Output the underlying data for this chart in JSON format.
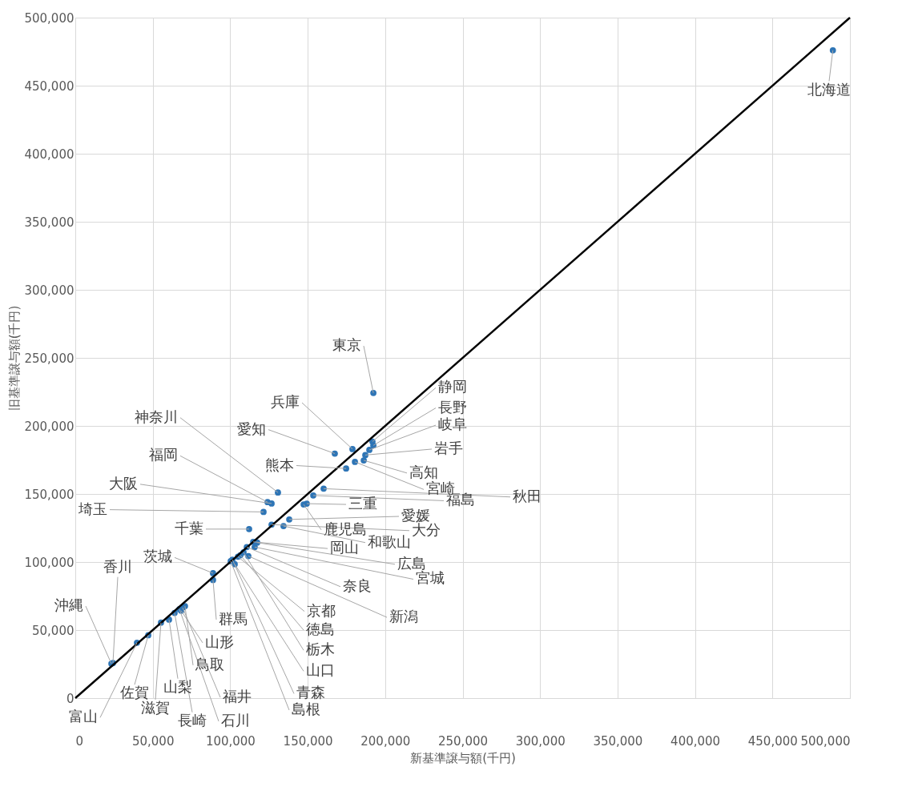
{
  "chart_data": {
    "type": "scatter",
    "xlabel": "新基準譲与額(千円)",
    "ylabel": "旧基準譲与額(千円)",
    "xlim": [
      0,
      500000
    ],
    "ylim": [
      0,
      500000
    ],
    "xticks": [
      0,
      {
        "value": 50000,
        "label": "50,000"
      },
      {
        "value": 100000,
        "label": "100,000"
      },
      {
        "value": 150000,
        "label": "150,000"
      },
      {
        "value": 200000,
        "label": "200,000"
      },
      {
        "value": 250000,
        "label": "250,000"
      },
      {
        "value": 300000,
        "label": "300,000"
      },
      {
        "value": 350000,
        "label": "350,000"
      },
      {
        "value": 400000,
        "label": "400,000"
      },
      {
        "value": 450000,
        "label": "450,000"
      },
      {
        "value": 500000,
        "label": "500,000"
      }
    ],
    "yticks": [
      0,
      {
        "value": 50000,
        "label": "50,000"
      },
      {
        "value": 100000,
        "label": "100,000"
      },
      {
        "value": 150000,
        "label": "150,000"
      },
      {
        "value": 200000,
        "label": "200,000"
      },
      {
        "value": 250000,
        "label": "250,000"
      },
      {
        "value": 300000,
        "label": "300,000"
      },
      {
        "value": 350000,
        "label": "350,000"
      },
      {
        "value": 400000,
        "label": "400,000"
      },
      {
        "value": 450000,
        "label": "450,000"
      },
      {
        "value": 500000,
        "label": "500,000"
      }
    ],
    "grid": true,
    "series": [
      {
        "color": "#2e75b6",
        "marker": "circle",
        "x": [
          489000,
          192400,
          178900,
          167500,
          191800,
          192400,
          189800,
          187200,
          186200,
          180500,
          174800,
          160300,
          153600,
          130800,
          124100,
          126700,
          121500,
          149400,
          147400,
          138100,
          134400,
          126700,
          112200,
          88900,
          88900,
          23300,
          24300,
          39800,
          47100,
          55300,
          60500,
          64100,
          67200,
          69300,
          70800,
          68300,
          114800,
          117400,
          115800,
          110700,
          111700,
          105000,
          106500,
          108600,
          102900,
          101400,
          100300
        ],
        "values": [
          476000,
          224200,
          183000,
          179700,
          188500,
          185700,
          182400,
          178600,
          174700,
          173600,
          168700,
          153900,
          148900,
          151100,
          144000,
          143000,
          136800,
          142900,
          142300,
          131300,
          126400,
          127500,
          124200,
          91800,
          86800,
          25300,
          25800,
          40700,
          46200,
          55500,
          57700,
          62600,
          65400,
          66500,
          67600,
          64300,
          114800,
          114300,
          111000,
          111000,
          104400,
          103900,
          105000,
          107200,
          98400,
          101700,
          100600
        ],
        "value_labels": [
          "北海道",
          "東京",
          "兵庫",
          "愛知",
          "静岡",
          "長野",
          "岐阜",
          "岩手",
          "高知",
          "宮崎",
          "熊本",
          "秋田",
          "福島",
          "神奈川",
          "福岡",
          "大阪",
          "埼玉",
          "三重",
          "鹿児島",
          "愛媛",
          "和歌山",
          "大分",
          "千葉",
          "茨城",
          "群馬",
          "沖縄",
          "香川",
          "富山",
          "佐賀",
          "滋賀",
          "山梨",
          "長崎",
          "石川",
          "福井",
          "鳥取",
          "山形",
          "岡山",
          "広島",
          "宮城",
          "奈良",
          "新潟",
          "京都",
          "徳島",
          "栃木",
          "山口",
          "青森",
          "島根"
        ]
      },
      {
        "type": "line",
        "color": "#000000",
        "x": [
          0,
          500000
        ],
        "values": [
          0,
          500000
        ]
      }
    ]
  }
}
